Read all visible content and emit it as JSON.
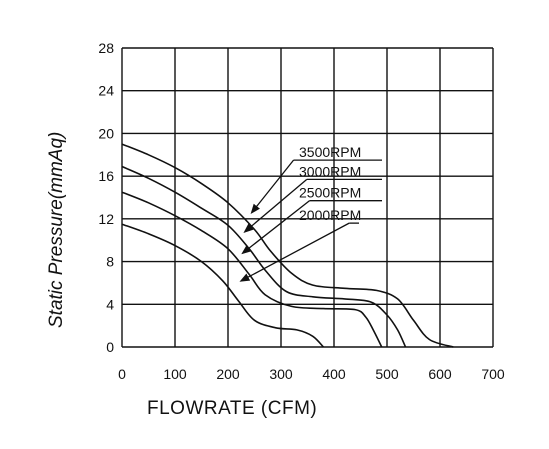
{
  "chart_data": {
    "type": "line",
    "xlabel": "FLOWRATE (CFM)",
    "ylabel": "Static  Pressure(mmAq)",
    "xlim": [
      0,
      700
    ],
    "ylim": [
      0,
      28
    ],
    "x_ticks": [
      0,
      100,
      200,
      300,
      400,
      500,
      600,
      700
    ],
    "y_ticks": [
      0,
      4,
      8,
      12,
      16,
      20,
      24,
      28
    ],
    "grid": true,
    "legend": "inline labels with arrows pointing to curves",
    "series": [
      {
        "name": "3500RPM",
        "points": [
          [
            0,
            19.0
          ],
          [
            50,
            18.0
          ],
          [
            100,
            16.8
          ],
          [
            150,
            15.3
          ],
          [
            200,
            13.5
          ],
          [
            250,
            11.0
          ],
          [
            280,
            9.0
          ],
          [
            320,
            6.9
          ],
          [
            360,
            5.8
          ],
          [
            420,
            5.5
          ],
          [
            480,
            5.3
          ],
          [
            520,
            4.5
          ],
          [
            550,
            2.5
          ],
          [
            580,
            0.7
          ],
          [
            625,
            0
          ]
        ]
      },
      {
        "name": "3000RPM",
        "points": [
          [
            0,
            16.9
          ],
          [
            50,
            15.8
          ],
          [
            100,
            14.5
          ],
          [
            150,
            13.0
          ],
          [
            200,
            11.4
          ],
          [
            240,
            9.2
          ],
          [
            270,
            7.2
          ],
          [
            310,
            5.2
          ],
          [
            360,
            4.7
          ],
          [
            420,
            4.5
          ],
          [
            470,
            4.2
          ],
          [
            500,
            3.0
          ],
          [
            520,
            1.6
          ],
          [
            535,
            0
          ]
        ]
      },
      {
        "name": "2500RPM",
        "points": [
          [
            0,
            14.5
          ],
          [
            50,
            13.5
          ],
          [
            100,
            12.3
          ],
          [
            150,
            10.9
          ],
          [
            200,
            9.2
          ],
          [
            240,
            6.8
          ],
          [
            270,
            4.9
          ],
          [
            320,
            3.8
          ],
          [
            380,
            3.6
          ],
          [
            440,
            3.5
          ],
          [
            460,
            2.8
          ],
          [
            475,
            1.5
          ],
          [
            490,
            0
          ]
        ]
      },
      {
        "name": "2000RPM",
        "points": [
          [
            0,
            11.5
          ],
          [
            50,
            10.6
          ],
          [
            100,
            9.5
          ],
          [
            150,
            8.0
          ],
          [
            190,
            6.2
          ],
          [
            220,
            4.3
          ],
          [
            250,
            2.5
          ],
          [
            290,
            1.8
          ],
          [
            330,
            1.6
          ],
          [
            360,
            1.0
          ],
          [
            380,
            0
          ]
        ]
      }
    ],
    "annotations": [
      {
        "text": "3500RPM",
        "line_from": [
          335,
          17.5
        ],
        "arrow_to": [
          245,
          12.6
        ]
      },
      {
        "text": "3000RPM",
        "line_from": [
          360,
          15.7
        ],
        "arrow_to": [
          232,
          10.8
        ]
      },
      {
        "text": "2500RPM",
        "line_from": [
          365,
          13.7
        ],
        "arrow_to": [
          228,
          8.8
        ]
      },
      {
        "text": "2000RPM",
        "line_from": [
          440,
          11.6
        ],
        "arrow_to": [
          225,
          6.2
        ]
      }
    ]
  }
}
